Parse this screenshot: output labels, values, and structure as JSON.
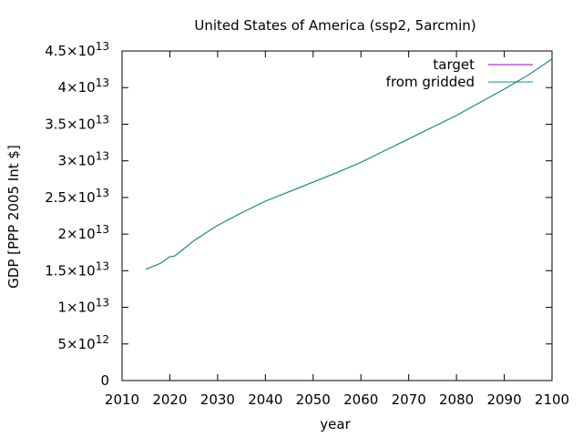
{
  "chart_data": {
    "type": "line",
    "title": "United States of America (ssp2, 5arcmin)",
    "xlabel": "year",
    "ylabel": "GDP [PPP 2005 Int $]",
    "xlim": [
      2010,
      2100
    ],
    "ylim": [
      0,
      45000000000000.0
    ],
    "x_ticks": [
      2010,
      2020,
      2030,
      2040,
      2050,
      2060,
      2070,
      2080,
      2090,
      2100
    ],
    "y_ticks": [
      {
        "value": 0,
        "mant": "0",
        "exp": ""
      },
      {
        "value": 5000000000000.0,
        "mant": "5×10",
        "exp": "12"
      },
      {
        "value": 10000000000000.0,
        "mant": "1×10",
        "exp": "13"
      },
      {
        "value": 15000000000000.0,
        "mant": "1.5×10",
        "exp": "13"
      },
      {
        "value": 20000000000000.0,
        "mant": "2×10",
        "exp": "13"
      },
      {
        "value": 25000000000000.0,
        "mant": "2.5×10",
        "exp": "13"
      },
      {
        "value": 30000000000000.0,
        "mant": "3×10",
        "exp": "13"
      },
      {
        "value": 35000000000000.0,
        "mant": "3.5×10",
        "exp": "13"
      },
      {
        "value": 40000000000000.0,
        "mant": "4×10",
        "exp": "13"
      },
      {
        "value": 45000000000000.0,
        "mant": "4.5×10",
        "exp": "13"
      }
    ],
    "grid": false,
    "legend_position": "top-right",
    "series": [
      {
        "name": "target",
        "color": "#9400d3",
        "x": [
          2015,
          2018,
          2020,
          2021,
          2022,
          2025,
          2030,
          2035,
          2040,
          2045,
          2050,
          2055,
          2060,
          2065,
          2070,
          2075,
          2080,
          2085,
          2090,
          2095,
          2100
        ],
        "y": [
          15200000000000.0,
          16000000000000.0,
          16900000000000.0,
          17000000000000.0,
          17500000000000.0,
          19100000000000.0,
          21200000000000.0,
          22900000000000.0,
          24500000000000.0,
          25800000000000.0,
          27100000000000.0,
          28400000000000.0,
          29800000000000.0,
          31400000000000.0,
          33000000000000.0,
          34600000000000.0,
          36200000000000.0,
          38000000000000.0,
          39800000000000.0,
          41700000000000.0,
          43900000000000.0
        ]
      },
      {
        "name": "from gridded",
        "color": "#009e73",
        "x": [
          2015,
          2018,
          2020,
          2021,
          2022,
          2025,
          2030,
          2035,
          2040,
          2045,
          2050,
          2055,
          2060,
          2065,
          2070,
          2075,
          2080,
          2085,
          2090,
          2095,
          2100
        ],
        "y": [
          15200000000000.0,
          16000000000000.0,
          16900000000000.0,
          17000000000000.0,
          17500000000000.0,
          19100000000000.0,
          21200000000000.0,
          22900000000000.0,
          24500000000000.0,
          25800000000000.0,
          27100000000000.0,
          28400000000000.0,
          29800000000000.0,
          31400000000000.0,
          33000000000000.0,
          34600000000000.0,
          36200000000000.0,
          38000000000000.0,
          39800000000000.0,
          41700000000000.0,
          43900000000000.0
        ]
      }
    ]
  }
}
